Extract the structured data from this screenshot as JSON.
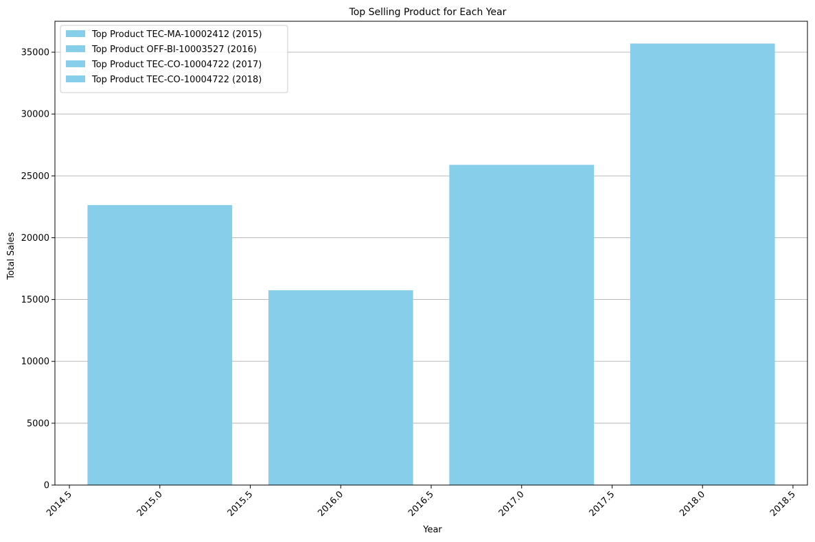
{
  "chart_data": {
    "type": "bar",
    "title": "Top Selling Product for Each Year",
    "xlabel": "Year",
    "ylabel": "Total Sales",
    "xlim": [
      2014.42,
      2018.58
    ],
    "ylim": [
      0,
      37500
    ],
    "x_ticks": [
      2014.5,
      2015.0,
      2015.5,
      2016.0,
      2016.5,
      2017.0,
      2017.5,
      2018.0,
      2018.5
    ],
    "x_tick_labels": [
      "2014.5",
      "2015.0",
      "2015.5",
      "2016.0",
      "2016.5",
      "2017.0",
      "2017.5",
      "2018.0",
      "2018.5"
    ],
    "y_ticks": [
      0,
      5000,
      10000,
      15000,
      20000,
      25000,
      30000,
      35000
    ],
    "y_tick_labels": [
      "0",
      "5000",
      "10000",
      "15000",
      "20000",
      "25000",
      "30000",
      "35000"
    ],
    "bar_width": 0.8,
    "bar_color": "#87CEEB",
    "grid": "y",
    "legend_position": "top-left",
    "bars": [
      {
        "x": 2015,
        "value": 22640,
        "label": "Top Product TEC-MA-10002412 (2015)"
      },
      {
        "x": 2016,
        "value": 15750,
        "label": "Top Product OFF-BI-10003527 (2016)"
      },
      {
        "x": 2017,
        "value": 25890,
        "label": "Top Product TEC-CO-10004722 (2017)"
      },
      {
        "x": 2018,
        "value": 35700,
        "label": "Top Product TEC-CO-10004722 (2018)"
      }
    ]
  }
}
